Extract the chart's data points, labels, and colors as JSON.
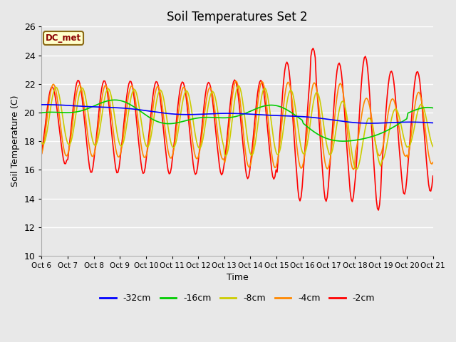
{
  "title": "Soil Temperatures Set 2",
  "xlabel": "Time",
  "ylabel": "Soil Temperature (C)",
  "ylim": [
    10,
    26
  ],
  "yticks": [
    10,
    12,
    14,
    16,
    18,
    20,
    22,
    24,
    26
  ],
  "background_color": "#e8e8e8",
  "annotation": "DC_met",
  "annotation_color": "#8b0000",
  "annotation_bg": "#ffffcc",
  "annotation_border": "#8b6914",
  "x_tick_labels": [
    "Oct 6",
    "Oct 7",
    "Oct 8",
    "Oct 9",
    "Oct 10",
    "Oct 11",
    "Oct 12",
    "Oct 13",
    "Oct 14",
    "Oct 15",
    "Oct 16",
    "Oct 17",
    "Oct 18",
    "Oct 19",
    "Oct 20",
    "Oct 21"
  ],
  "series": {
    "-32cm": {
      "color": "#0000ff",
      "linewidth": 1.2
    },
    "-16cm": {
      "color": "#00cc00",
      "linewidth": 1.2
    },
    "-8cm": {
      "color": "#cccc00",
      "linewidth": 1.2
    },
    "-4cm": {
      "color": "#ff8800",
      "linewidth": 1.2
    },
    "-2cm": {
      "color": "#ff0000",
      "linewidth": 1.2
    }
  }
}
